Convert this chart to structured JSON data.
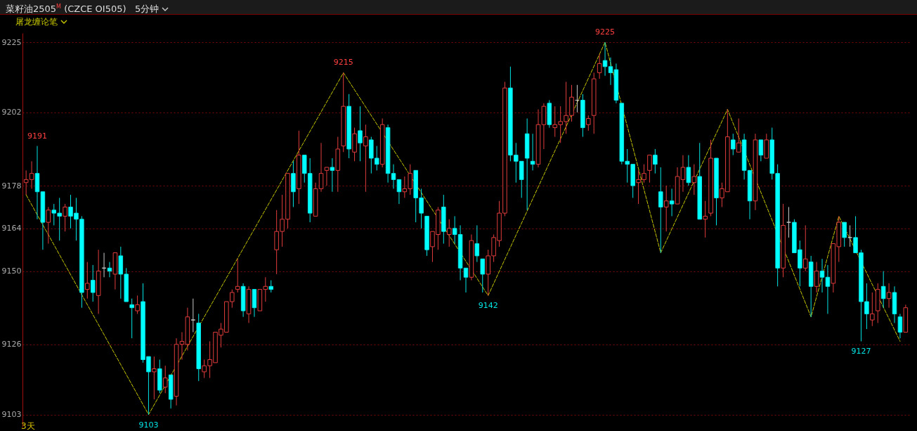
{
  "chart_data": {
    "type": "candlestick",
    "title": "菜籽油2505$^{M}$ (CZCE OI505)",
    "subtitle": "5分钟",
    "categories": [
      null,
      null,
      null,
      null,
      null,
      null,
      null,
      null,
      null,
      null,
      null,
      null,
      null,
      null,
      null,
      null,
      null,
      null,
      null,
      null,
      null,
      null,
      null,
      null,
      null,
      null,
      null,
      null,
      null,
      null,
      null,
      null,
      null,
      null,
      null,
      null,
      null,
      null,
      null,
      null,
      null,
      null,
      null,
      null,
      null,
      null,
      null,
      null,
      null,
      null,
      null,
      null,
      null,
      null,
      null,
      null,
      null,
      null,
      null,
      null,
      null,
      null,
      null,
      null,
      null,
      null,
      null,
      null,
      null,
      null,
      null,
      null,
      null,
      null,
      null,
      null,
      null,
      null,
      null,
      null,
      null,
      null,
      null,
      null,
      null,
      null,
      null,
      null,
      null,
      null,
      null,
      null,
      null,
      null,
      null,
      null,
      null,
      null,
      null,
      null,
      null,
      null,
      null,
      null,
      null,
      null,
      null,
      null,
      null,
      null,
      null,
      null,
      null,
      null,
      null,
      null,
      null,
      null,
      null,
      null,
      null,
      null,
      null,
      null,
      null,
      null,
      null,
      null,
      null,
      null,
      null,
      null,
      null,
      null,
      null,
      null,
      null,
      null,
      null,
      null,
      null,
      null,
      null,
      null,
      null,
      null,
      null,
      null,
      null,
      null,
      null,
      null,
      null,
      null,
      null,
      null,
      null,
      null,
      null
    ],
    "ohlc": [
      [
        9179,
        9183,
        9175,
        9180
      ],
      [
        9180,
        9186,
        9177,
        9182
      ],
      [
        9182,
        9191,
        9167,
        9176
      ],
      [
        9176,
        9176,
        9157,
        9166
      ],
      [
        9166,
        9171,
        9159,
        9170
      ],
      [
        9170,
        9172,
        9165,
        9169
      ],
      [
        9169,
        9174,
        9160,
        9168
      ],
      [
        9168,
        9172,
        9163,
        9171
      ],
      [
        9171,
        9175,
        9164,
        9168
      ],
      [
        9169,
        9174,
        9160,
        9167
      ],
      [
        9167,
        9168,
        9138,
        9143
      ],
      [
        9144,
        9153,
        9141,
        9146
      ],
      [
        9147,
        9152,
        9140,
        9143
      ],
      [
        9142,
        9157,
        9136,
        9150
      ],
      [
        9151,
        9156,
        9148,
        9151
      ],
      [
        9151,
        9153,
        9148,
        9150
      ],
      [
        9149,
        9156,
        9144,
        9156
      ],
      [
        9155,
        9158,
        9141,
        9149
      ],
      [
        9149,
        9151,
        9140,
        9140
      ],
      [
        9139,
        9141,
        9128,
        9138
      ],
      [
        9137,
        9142,
        9136,
        9139
      ],
      [
        9140,
        9146,
        9120,
        9121
      ],
      [
        9122,
        9122,
        9103,
        9117
      ],
      [
        9117,
        9122,
        9108,
        9118
      ],
      [
        9118,
        9121,
        9110,
        9111
      ],
      [
        9112,
        9119,
        9110,
        9115
      ],
      [
        9116,
        9116,
        9105,
        9108
      ],
      [
        9109,
        9128,
        9106,
        9126
      ],
      [
        9126,
        9130,
        9121,
        9127
      ],
      [
        9126,
        9138,
        9124,
        9135
      ],
      [
        9134,
        9141,
        9130,
        9134
      ],
      [
        9133,
        9136,
        9114,
        9118
      ],
      [
        9117,
        9121,
        9115,
        9119
      ],
      [
        9119,
        9127,
        9115,
        9121
      ],
      [
        9120,
        9130,
        9120,
        9130
      ],
      [
        9129,
        9133,
        9125,
        9131
      ],
      [
        9130,
        9140,
        9130,
        9140
      ],
      [
        9140,
        9144,
        9138,
        9143
      ],
      [
        9144,
        9154,
        9143,
        9145
      ],
      [
        9145,
        9146,
        9135,
        9137
      ],
      [
        9136,
        9145,
        9133,
        9144
      ],
      [
        9144,
        9144,
        9135,
        9138
      ],
      [
        9137,
        9144,
        9137,
        9144
      ],
      [
        9144,
        9148,
        9140,
        9145
      ],
      [
        9145,
        9147,
        9143,
        9144
      ],
      [
        9157,
        9170,
        9149,
        9163
      ],
      [
        9163,
        9175,
        9158,
        9167
      ],
      [
        9167,
        9182,
        9164,
        9182
      ],
      [
        9182,
        9186,
        9171,
        9176
      ],
      [
        9177,
        9196,
        9172,
        9188
      ],
      [
        9188,
        9188,
        9179,
        9182
      ],
      [
        9182,
        9187,
        9166,
        9169
      ],
      [
        9168,
        9179,
        9168,
        9177
      ],
      [
        9177,
        9192,
        9176,
        9182
      ],
      [
        9183,
        9184,
        9178,
        9184
      ],
      [
        9184,
        9187,
        9176,
        9183
      ],
      [
        9183,
        9194,
        9176,
        9190
      ],
      [
        9191,
        9215,
        9189,
        9204
      ],
      [
        9204,
        9208,
        9187,
        9190
      ],
      [
        9189,
        9197,
        9186,
        9195
      ],
      [
        9196,
        9204,
        9186,
        9192
      ],
      [
        9191,
        9198,
        9176,
        9194
      ],
      [
        9193,
        9194,
        9182,
        9187
      ],
      [
        9187,
        9191,
        9183,
        9185
      ],
      [
        9185,
        9200,
        9184,
        9198
      ],
      [
        9197,
        9198,
        9179,
        9182
      ],
      [
        9182,
        9185,
        9177,
        9180
      ],
      [
        9180,
        9180,
        9172,
        9176
      ],
      [
        9176,
        9181,
        9174,
        9177
      ],
      [
        9177,
        9185,
        9175,
        9182
      ],
      [
        9183,
        9183,
        9166,
        9174
      ],
      [
        9174,
        9177,
        9164,
        9169
      ],
      [
        9168,
        9168,
        9155,
        9157
      ],
      [
        9158,
        9163,
        9153,
        9163
      ],
      [
        9162,
        9171,
        9157,
        9170
      ],
      [
        9171,
        9175,
        9159,
        9163
      ],
      [
        9162,
        9167,
        9158,
        9164
      ],
      [
        9164,
        9168,
        9159,
        9162
      ],
      [
        9162,
        9165,
        9147,
        9151
      ],
      [
        9151,
        9151,
        9143,
        9148
      ],
      [
        9148,
        9162,
        9147,
        9160
      ],
      [
        9159,
        9165,
        9153,
        9155
      ],
      [
        9154,
        9154,
        9143,
        9149
      ],
      [
        9149,
        9157,
        9142,
        9155
      ],
      [
        9155,
        9162,
        9153,
        9161
      ],
      [
        9160,
        9173,
        9158,
        9169
      ],
      [
        9169,
        9212,
        9168,
        9210
      ],
      [
        9210,
        9217,
        9186,
        9188
      ],
      [
        9188,
        9192,
        9179,
        9186
      ],
      [
        9186,
        9186,
        9174,
        9180
      ],
      [
        9195,
        9200,
        9170,
        9187
      ],
      [
        9186,
        9195,
        9183,
        9185
      ],
      [
        9185,
        9203,
        9184,
        9198
      ],
      [
        9198,
        9205,
        9190,
        9204
      ],
      [
        9205,
        9206,
        9197,
        9198
      ],
      [
        9197,
        9204,
        9194,
        9198
      ],
      [
        9198,
        9204,
        9192,
        9199
      ],
      [
        9199,
        9212,
        9195,
        9201
      ],
      [
        9201,
        9211,
        9199,
        9207
      ],
      [
        9206,
        9211,
        9202,
        9206
      ],
      [
        9206,
        9208,
        9194,
        9197
      ],
      [
        9198,
        9201,
        9196,
        9200
      ],
      [
        9201,
        9215,
        9195,
        9213
      ],
      [
        9215,
        9221,
        9213,
        9218
      ],
      [
        9219,
        9225,
        9214,
        9217
      ],
      [
        9217,
        9220,
        9211,
        9215
      ],
      [
        9216,
        9218,
        9205,
        9206
      ],
      [
        9205,
        9205,
        9185,
        9186
      ],
      [
        9186,
        9190,
        9179,
        9185
      ],
      [
        9185,
        9185,
        9174,
        9178
      ],
      [
        9179,
        9183,
        9172,
        9180
      ],
      [
        9180,
        9185,
        9179,
        9182
      ],
      [
        9183,
        9188,
        9179,
        9188
      ],
      [
        9188,
        9190,
        9182,
        9185
      ],
      [
        9176,
        9184,
        9156,
        9171
      ],
      [
        9171,
        9178,
        9163,
        9173
      ],
      [
        9173,
        9177,
        9168,
        9172
      ],
      [
        9172,
        9184,
        9172,
        9181
      ],
      [
        9180,
        9188,
        9176,
        9184
      ],
      [
        9184,
        9188,
        9178,
        9179
      ],
      [
        9179,
        9185,
        9175,
        9181
      ],
      [
        9181,
        9192,
        9167,
        9167
      ],
      [
        9167,
        9173,
        9161,
        9168
      ],
      [
        9169,
        9193,
        9168,
        9187
      ],
      [
        9187,
        9187,
        9165,
        9174
      ],
      [
        9174,
        9179,
        9171,
        9177
      ],
      [
        9176,
        9203,
        9176,
        9194
      ],
      [
        9193,
        9195,
        9188,
        9190
      ],
      [
        9189,
        9200,
        9189,
        9192
      ],
      [
        9193,
        9195,
        9180,
        9183
      ],
      [
        9183,
        9183,
        9167,
        9173
      ],
      [
        9173,
        9195,
        9170,
        9193
      ],
      [
        9193,
        9193,
        9186,
        9188
      ],
      [
        9187,
        9195,
        9187,
        9193
      ],
      [
        9193,
        9197,
        9180,
        9182
      ],
      [
        9182,
        9185,
        9145,
        9151
      ],
      [
        9151,
        9172,
        9148,
        9165
      ],
      [
        9166,
        9171,
        9161,
        9166
      ],
      [
        9166,
        9167,
        9156,
        9156
      ],
      [
        9157,
        9160,
        9145,
        9151
      ],
      [
        9151,
        9165,
        9150,
        9154
      ],
      [
        9153,
        9155,
        9135,
        9145
      ],
      [
        9145,
        9153,
        9143,
        9150
      ],
      [
        9150,
        9154,
        9143,
        9148
      ],
      [
        9148,
        9152,
        9136,
        9145
      ],
      [
        9146,
        9159,
        9143,
        9159
      ],
      [
        9158,
        9168,
        9153,
        9166
      ],
      [
        9166,
        9166,
        9158,
        9161
      ],
      [
        9161,
        9165,
        9158,
        9161
      ],
      [
        9161,
        9168,
        9156,
        9156
      ],
      [
        9156,
        9157,
        9127,
        9140
      ],
      [
        9140,
        9146,
        9131,
        9136
      ],
      [
        9134,
        9143,
        9132,
        9136
      ],
      [
        9137,
        9146,
        9133,
        9144
      ],
      [
        9145,
        9150,
        9138,
        9141
      ],
      [
        9141,
        9146,
        9138,
        9143
      ],
      [
        9143,
        9145,
        9133,
        9136
      ],
      [
        9135,
        9136,
        9128,
        9130
      ],
      [
        9130,
        9139,
        9130,
        9138
      ]
    ],
    "series": [
      {
        "name": "屠龙缠论笔",
        "type": "line",
        "color": "#c8c800",
        "line_style": "dashed",
        "values": [
          9175,
          null,
          null,
          null,
          null,
          null,
          null,
          null,
          null,
          null,
          null,
          null,
          null,
          null,
          null,
          null,
          null,
          null,
          null,
          null,
          null,
          null,
          9103,
          null,
          null,
          null,
          null,
          null,
          null,
          null,
          null,
          null,
          null,
          null,
          null,
          null,
          null,
          null,
          null,
          null,
          null,
          null,
          null,
          null,
          null,
          null,
          null,
          null,
          null,
          null,
          null,
          null,
          null,
          null,
          null,
          null,
          null,
          9215,
          null,
          null,
          null,
          null,
          null,
          null,
          null,
          null,
          null,
          null,
          null,
          null,
          null,
          null,
          null,
          null,
          null,
          null,
          null,
          null,
          null,
          null,
          null,
          null,
          null,
          9142,
          null,
          null,
          null,
          null,
          null,
          null,
          null,
          null,
          null,
          null,
          null,
          null,
          null,
          null,
          null,
          null,
          null,
          null,
          null,
          null,
          9225,
          null,
          null,
          null,
          null,
          null,
          null,
          null,
          null,
          null,
          9156,
          null,
          null,
          null,
          null,
          null,
          null,
          null,
          null,
          null,
          null,
          null,
          9203,
          null,
          null,
          null,
          null,
          null,
          null,
          null,
          null,
          null,
          null,
          null,
          null,
          null,
          null,
          9135,
          null,
          null,
          null,
          null,
          9168,
          null,
          null,
          null,
          null,
          null,
          null,
          null,
          null,
          null,
          null,
          9127,
          null
        ]
      }
    ],
    "ylim": [
      9099,
      9228
    ],
    "yticks": [
      9225,
      9202,
      9178,
      9164,
      9150,
      9126,
      9103
    ],
    "grid": "y",
    "tick_labels": "y",
    "legend": "top left",
    "annotations": [
      {
        "text": "9191",
        "y": 9191
      },
      {
        "text": "9103",
        "y": 9103
      },
      {
        "text": "9215",
        "y": 9215
      },
      {
        "text": "9142",
        "y": 9142
      },
      {
        "text": "9225",
        "y": 9225
      },
      {
        "text": "9127",
        "y": 9127
      },
      "3天"
    ]
  }
}
